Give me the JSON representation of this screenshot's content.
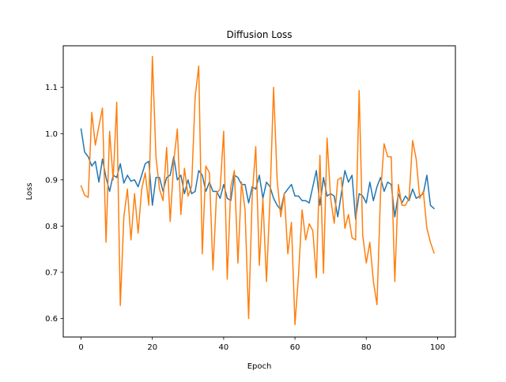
{
  "chart_data": {
    "type": "line",
    "title": "Diffusion Loss",
    "xlabel": "Epoch",
    "ylabel": "Loss",
    "xlim": [
      -5,
      105
    ],
    "ylim": [
      0.56,
      1.19
    ],
    "xticks": [
      0,
      20,
      40,
      60,
      80,
      100
    ],
    "yticks": [
      0.6,
      0.7,
      0.8,
      0.9,
      1.0,
      1.1
    ],
    "ytick_labels": [
      "0.6",
      "0.7",
      "0.8",
      "0.9",
      "1.0",
      "1.1"
    ],
    "grid": false,
    "legend": "none",
    "series": [
      {
        "color": "#1f77b4",
        "x": [
          0,
          1,
          2,
          3,
          4,
          5,
          6,
          7,
          8,
          9,
          10,
          11,
          12,
          13,
          14,
          15,
          16,
          17,
          18,
          19,
          20,
          21,
          22,
          23,
          24,
          25,
          26,
          27,
          28,
          29,
          30,
          31,
          32,
          33,
          34,
          35,
          36,
          37,
          38,
          39,
          40,
          41,
          42,
          43,
          44,
          45,
          46,
          47,
          48,
          49,
          50,
          51,
          52,
          53,
          54,
          55,
          56,
          57,
          58,
          59,
          60,
          61,
          62,
          63,
          64,
          65,
          66,
          67,
          68,
          69,
          70,
          71,
          72,
          73,
          74,
          75,
          76,
          77,
          78,
          79,
          80,
          81,
          82,
          83,
          84,
          85,
          86,
          87,
          88,
          89,
          90,
          91,
          92,
          93,
          94,
          95,
          96,
          97,
          98,
          99
        ],
        "values": [
          1.01,
          0.96,
          0.95,
          0.93,
          0.94,
          0.895,
          0.945,
          0.905,
          0.875,
          0.91,
          0.905,
          0.935,
          0.893,
          0.91,
          0.897,
          0.9,
          0.885,
          0.91,
          0.935,
          0.94,
          0.845,
          0.905,
          0.905,
          0.875,
          0.905,
          0.91,
          0.95,
          0.9,
          0.91,
          0.87,
          0.9,
          0.87,
          0.875,
          0.92,
          0.91,
          0.875,
          0.895,
          0.875,
          0.875,
          0.86,
          0.89,
          0.86,
          0.855,
          0.91,
          0.905,
          0.89,
          0.89,
          0.85,
          0.885,
          0.88,
          0.91,
          0.86,
          0.895,
          0.885,
          0.86,
          0.845,
          0.835,
          0.87,
          0.88,
          0.89,
          0.865,
          0.865,
          0.855,
          0.855,
          0.85,
          0.885,
          0.92,
          0.845,
          0.905,
          0.865,
          0.87,
          0.865,
          0.82,
          0.87,
          0.92,
          0.895,
          0.91,
          0.815,
          0.87,
          0.865,
          0.85,
          0.895,
          0.855,
          0.885,
          0.905,
          0.875,
          0.895,
          0.89,
          0.82,
          0.87,
          0.85,
          0.865,
          0.855,
          0.88,
          0.86,
          0.865,
          0.87,
          0.91,
          0.845,
          0.838
        ]
      },
      {
        "color": "#ff7f0e",
        "x": [
          0,
          1,
          2,
          3,
          4,
          5,
          6,
          7,
          8,
          9,
          10,
          11,
          12,
          13,
          14,
          15,
          16,
          17,
          18,
          19,
          20,
          21,
          22,
          23,
          24,
          25,
          26,
          27,
          28,
          29,
          30,
          31,
          32,
          33,
          34,
          35,
          36,
          37,
          38,
          39,
          40,
          41,
          42,
          43,
          44,
          45,
          46,
          47,
          48,
          49,
          50,
          51,
          52,
          53,
          54,
          55,
          56,
          57,
          58,
          59,
          60,
          61,
          62,
          63,
          64,
          65,
          66,
          67,
          68,
          69,
          70,
          71,
          72,
          73,
          74,
          75,
          76,
          77,
          78,
          79,
          80,
          81,
          82,
          83,
          84,
          85,
          86,
          87,
          88,
          89,
          90,
          91,
          92,
          93,
          94,
          95,
          96,
          97,
          98,
          99
        ],
        "values": [
          0.887,
          0.867,
          0.862,
          1.046,
          0.975,
          1.016,
          1.055,
          0.765,
          1.005,
          0.9,
          1.068,
          0.628,
          0.82,
          0.88,
          0.77,
          0.87,
          0.785,
          0.88,
          0.915,
          0.845,
          1.167,
          0.95,
          0.88,
          0.855,
          0.97,
          0.81,
          0.94,
          1.01,
          0.825,
          0.925,
          0.865,
          0.885,
          1.08,
          1.146,
          0.74,
          0.93,
          0.915,
          0.705,
          0.87,
          0.88,
          1.005,
          0.685,
          0.885,
          0.92,
          0.72,
          0.895,
          0.835,
          0.6,
          0.865,
          0.972,
          0.715,
          0.86,
          0.68,
          0.86,
          1.1,
          0.9,
          0.82,
          0.87,
          0.74,
          0.808,
          0.587,
          0.695,
          0.835,
          0.77,
          0.805,
          0.79,
          0.688,
          0.953,
          0.698,
          0.99,
          0.86,
          0.806,
          0.9,
          0.905,
          0.795,
          0.825,
          0.775,
          0.77,
          1.093,
          0.78,
          0.72,
          0.765,
          0.68,
          0.63,
          0.87,
          0.978,
          0.95,
          0.95,
          0.68,
          0.89,
          0.845,
          0.845,
          0.86,
          0.985,
          0.945,
          0.86,
          0.875,
          0.795,
          0.765,
          0.742
        ]
      }
    ]
  }
}
